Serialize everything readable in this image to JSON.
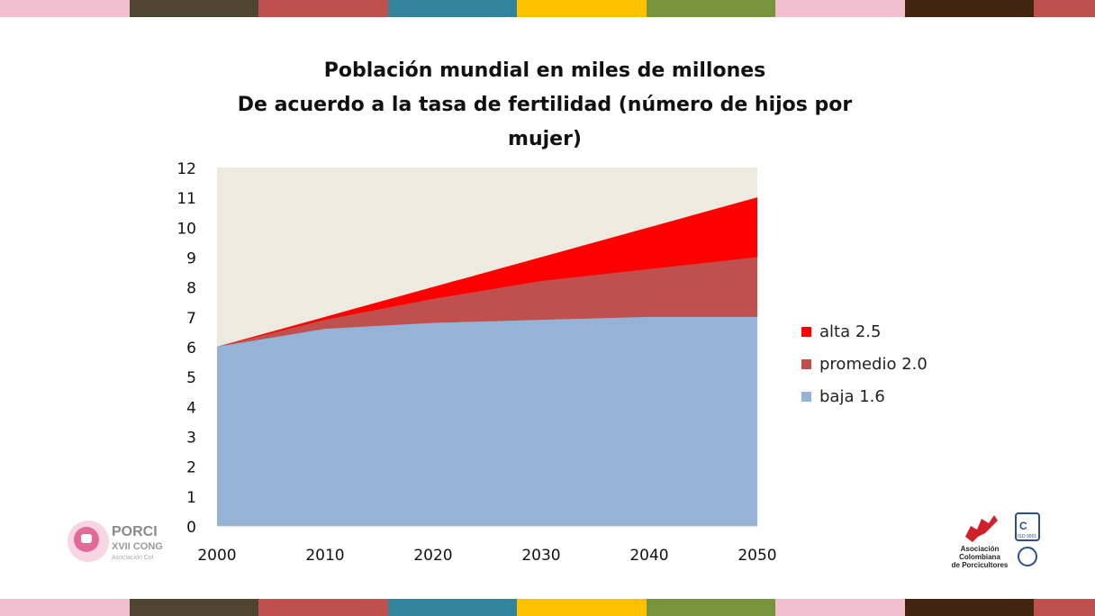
{
  "colors": {
    "stripe": [
      "#F2BFD0",
      "#4D4530",
      "#C0504D",
      "#31849B",
      "#FFC000",
      "#77933C",
      "#F2BFD0",
      "#432410",
      "#C0504D"
    ],
    "plot_background": "#EDEAE0",
    "baja": "#95B3D7",
    "promedio": "#C0504D",
    "alta": "#FF0000"
  },
  "logos": {
    "left_text_1": "PORCI",
    "left_text_2": "XVII CONG",
    "left_text_3": "Asociación Col",
    "right_text_1": "Asociación",
    "right_text_2": "Colombiana",
    "right_text_3": "de Porcicultores",
    "right_badge": "ISO 9001"
  },
  "chart_data": {
    "type": "area",
    "title": "Población mundial en miles de millones",
    "subtitle": "De acuerdo a la tasa de fertilidad (número de hijos por mujer)",
    "xlabel": "",
    "ylabel": "",
    "x": [
      2000,
      2010,
      2020,
      2030,
      2040,
      2050
    ],
    "ylim": [
      0,
      12
    ],
    "yticks": [
      "0",
      "1",
      "2",
      "3",
      "4",
      "5",
      "6",
      "7",
      "8",
      "9",
      "10",
      "11",
      "12"
    ],
    "xticks": [
      "2000",
      "2010",
      "2020",
      "2030",
      "2040",
      "2050"
    ],
    "grid": false,
    "legend": "right",
    "series": [
      {
        "name": "baja 1.6",
        "values": [
          6.0,
          6.6,
          6.8,
          6.9,
          7.0,
          7.0
        ]
      },
      {
        "name": "promedio 2.0",
        "values": [
          6.0,
          6.9,
          7.6,
          8.2,
          8.6,
          9.0
        ]
      },
      {
        "name": "alta 2.5",
        "values": [
          6.0,
          7.0,
          8.0,
          9.0,
          10.0,
          11.0
        ]
      }
    ],
    "legend_order": [
      "alta 2.5",
      "promedio 2.0",
      "baja 1.6"
    ]
  }
}
